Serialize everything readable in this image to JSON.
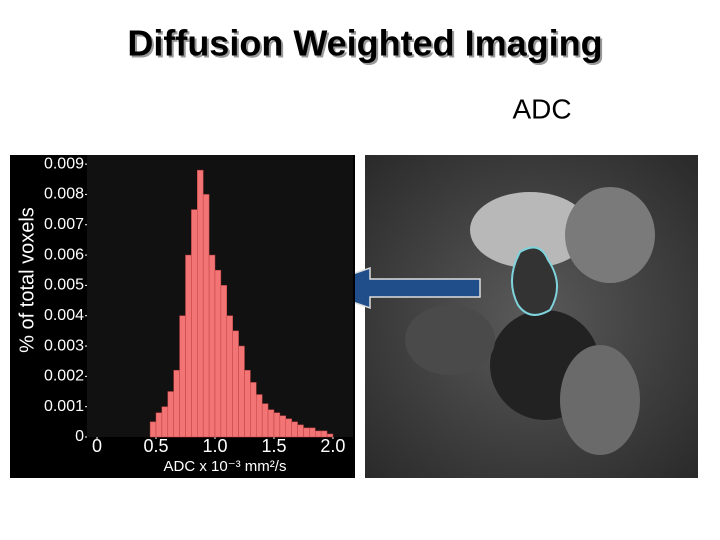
{
  "title": "Diffusion Weighted Imaging",
  "image_label": "ADC",
  "chart_data": {
    "type": "histogram",
    "y_label": "% of total voxels",
    "x_label": "ADC x 10⁻³ mm²/s",
    "color": "#f27474",
    "bins": [
      0.45,
      0.5,
      0.55,
      0.6,
      0.65,
      0.7,
      0.75,
      0.8,
      0.85,
      0.9,
      0.95,
      1.0,
      1.05,
      1.1,
      1.15,
      1.2,
      1.25,
      1.3,
      1.35,
      1.4,
      1.45,
      1.5,
      1.55,
      1.6,
      1.65,
      1.7,
      1.75,
      1.8,
      1.85,
      1.9,
      1.95,
      2.0
    ],
    "values": [
      0.0005,
      0.0008,
      0.001,
      0.0015,
      0.0022,
      0.004,
      0.006,
      0.0075,
      0.0088,
      0.008,
      0.006,
      0.0055,
      0.005,
      0.004,
      0.0035,
      0.003,
      0.0022,
      0.0018,
      0.0014,
      0.0011,
      0.0009,
      0.0008,
      0.0007,
      0.0006,
      0.0005,
      0.0004,
      0.0003,
      0.0003,
      0.0002,
      0.0002,
      0.0001
    ],
    "xlim": [
      -0.085,
      2.17
    ],
    "xticks": [
      0,
      0.5,
      {
        "value": 1,
        "label": "1.0"
      },
      1.5,
      {
        "value": 2,
        "label": "2.0"
      }
    ],
    "ylim": [
      0,
      0.0093
    ],
    "yticks": [
      0,
      0.001,
      0.002,
      0.003,
      0.004,
      0.005,
      0.006,
      0.007,
      0.008,
      0.009
    ]
  }
}
